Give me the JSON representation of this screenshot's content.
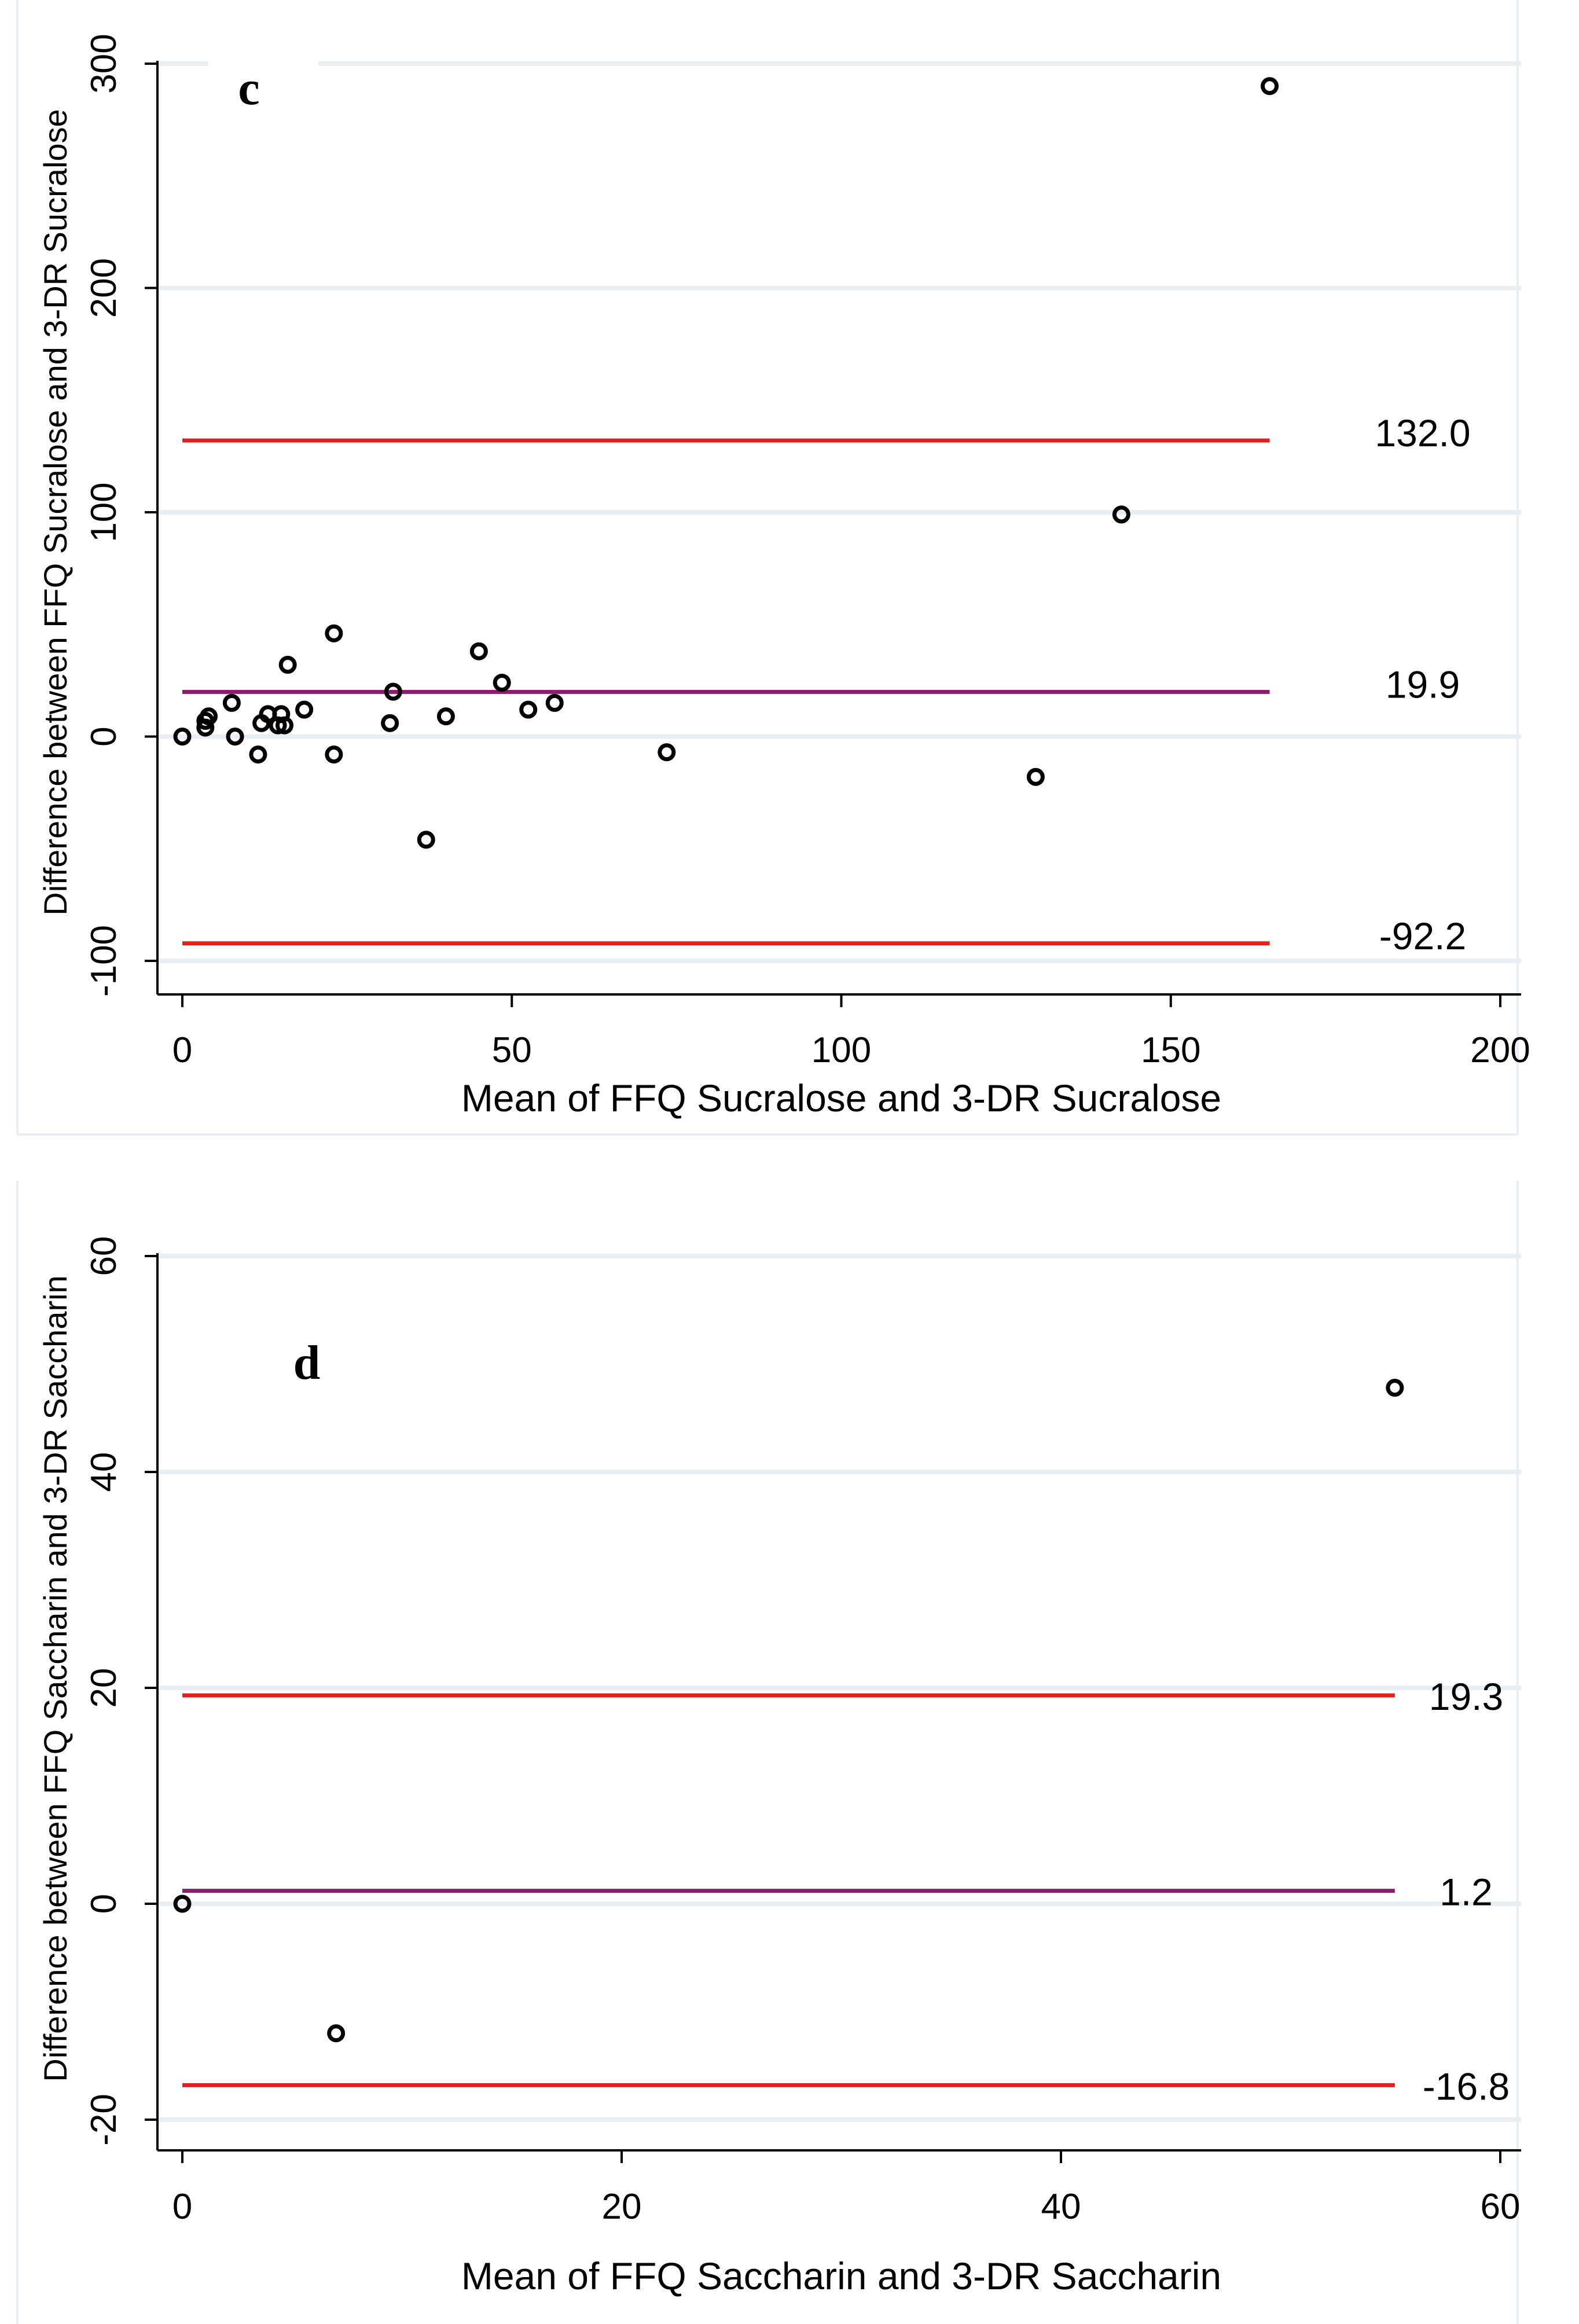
{
  "chart_data": [
    {
      "type": "scatter",
      "panel_label": "c",
      "title": "",
      "xlabel": "Mean of FFQ Sucralose and 3-DR Sucralose",
      "ylabel": "Difference between FFQ Sucralose and 3-DR Sucralose",
      "xlim": [
        0,
        200
      ],
      "ylim": [
        -100,
        300
      ],
      "xticks": [
        0,
        50,
        100,
        150,
        200
      ],
      "yticks": [
        -100,
        0,
        100,
        200,
        300
      ],
      "grid": true,
      "points": [
        {
          "x": 0,
          "y": 0
        },
        {
          "x": 3.5,
          "y": 4
        },
        {
          "x": 4,
          "y": 9
        },
        {
          "x": 3.5,
          "y": 7
        },
        {
          "x": 7.5,
          "y": 15
        },
        {
          "x": 8,
          "y": 0
        },
        {
          "x": 11.5,
          "y": -8
        },
        {
          "x": 12,
          "y": 6
        },
        {
          "x": 13,
          "y": 10
        },
        {
          "x": 14.5,
          "y": 5
        },
        {
          "x": 15,
          "y": 10
        },
        {
          "x": 15.5,
          "y": 5
        },
        {
          "x": 16,
          "y": 32
        },
        {
          "x": 18.5,
          "y": 12
        },
        {
          "x": 23,
          "y": 46
        },
        {
          "x": 23,
          "y": -8
        },
        {
          "x": 31.5,
          "y": 6
        },
        {
          "x": 32,
          "y": 20
        },
        {
          "x": 37,
          "y": -46
        },
        {
          "x": 40,
          "y": 9
        },
        {
          "x": 45,
          "y": 38
        },
        {
          "x": 48.5,
          "y": 24
        },
        {
          "x": 52.5,
          "y": 12
        },
        {
          "x": 56.5,
          "y": 15
        },
        {
          "x": 73.5,
          "y": -7
        },
        {
          "x": 129.5,
          "y": -18
        },
        {
          "x": 142.5,
          "y": 99
        },
        {
          "x": 165,
          "y": 290
        }
      ],
      "reference_lines": [
        {
          "name": "upper limit of agreement",
          "y": 132.0,
          "label": "132.0",
          "color": "#e3211c"
        },
        {
          "name": "mean difference",
          "y": 19.9,
          "label": "19.9",
          "color": "#8e1b6e"
        },
        {
          "name": "lower limit of agreement",
          "y": -92.2,
          "label": "-92.2",
          "color": "#e3211c"
        }
      ],
      "line_x_range": [
        0,
        165
      ]
    },
    {
      "type": "scatter",
      "panel_label": "d",
      "title": "",
      "xlabel": "Mean of FFQ Saccharin and 3-DR Saccharin",
      "ylabel": "Difference between FFQ Saccharin and 3-DR Saccharin",
      "xlim": [
        0,
        60
      ],
      "ylim": [
        -20,
        60
      ],
      "xticks": [
        0,
        20,
        40,
        60
      ],
      "yticks": [
        -20,
        0,
        20,
        40,
        60
      ],
      "grid": true,
      "points": [
        {
          "x": 0,
          "y": 0
        },
        {
          "x": 7,
          "y": -12
        },
        {
          "x": 55.2,
          "y": 47.8
        }
      ],
      "reference_lines": [
        {
          "name": "upper limit of agreement",
          "y": 19.3,
          "label": "19.3",
          "color": "#e3211c"
        },
        {
          "name": "mean difference",
          "y": 1.2,
          "label": "1.2",
          "color": "#8e1b6e"
        },
        {
          "name": "lower limit of agreement",
          "y": -16.8,
          "label": "-16.8",
          "color": "#e3211c"
        }
      ],
      "line_x_range": [
        0,
        55.2
      ]
    }
  ],
  "colors": {
    "background": "#ffffff",
    "gridline": "#e8eef1",
    "axis": "#000000",
    "marker": "#000000",
    "limit_line": "#e3211c",
    "mean_line": "#8e1b6e"
  }
}
